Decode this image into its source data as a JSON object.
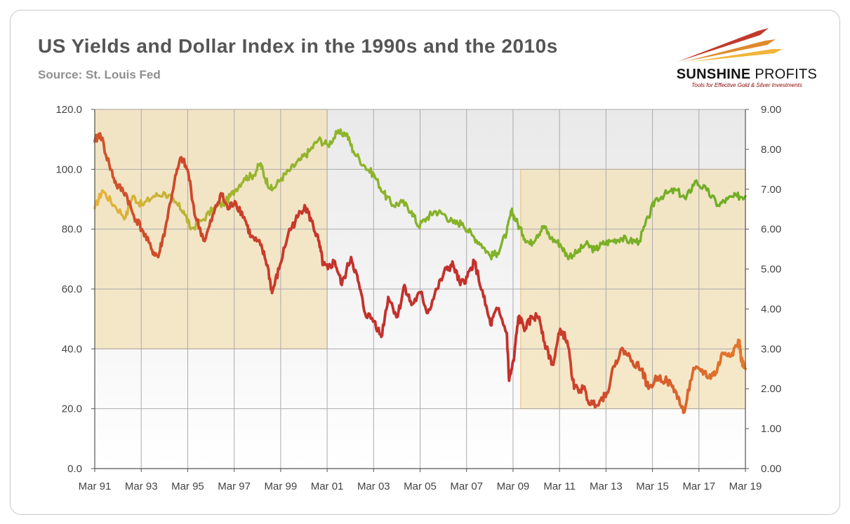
{
  "header": {
    "title": "US Yields and Dollar Index in the 1990s and the 2010s",
    "source": "Source: St. Louis Fed"
  },
  "logo": {
    "name_bold": "SUNSHINE",
    "name_regular": " PROFITS",
    "tagline": "Tools for Effective Gold & Silver Investments",
    "colors": {
      "red": "#c0392b",
      "orange": "#e0892b",
      "gold": "#f0b63a"
    }
  },
  "chart_data": {
    "type": "line",
    "title": "US Yields and Dollar Index in the 1990s and the 2010s",
    "subtitle": "Source: St. Louis Fed",
    "x_labels": [
      "Mar 91",
      "Mar 93",
      "Mar 95",
      "Mar 97",
      "Mar 99",
      "Mar 01",
      "Mar 03",
      "Mar 05",
      "Mar 07",
      "Mar 09",
      "Mar 11",
      "Mar 13",
      "Mar 15",
      "Mar 17",
      "Mar 19"
    ],
    "left_axis": {
      "range": [
        0,
        120
      ],
      "ticks": [
        "0.0",
        "20.0",
        "40.0",
        "60.0",
        "80.0",
        "100.0",
        "120.0"
      ]
    },
    "right_axis": {
      "range": [
        0,
        9
      ],
      "ticks": [
        "0.00",
        "1.00",
        "2.00",
        "3.00",
        "4.00",
        "5.00",
        "6.00",
        "7.00",
        "8.00",
        "9.00"
      ]
    },
    "x_range": [
      1991.17,
      2019.17
    ],
    "shaded_regions": [
      {
        "x": [
          1991.17,
          2001.17
        ],
        "y_left": [
          40,
          120
        ]
      },
      {
        "x": [
          2009.5,
          2019.17
        ],
        "y_left": [
          20,
          100
        ]
      }
    ],
    "series": [
      {
        "name": "Dollar Index",
        "axis": "left",
        "color_gradient": [
          "#e8b23a",
          "#6fae25"
        ],
        "points": [
          [
            1991.17,
            87
          ],
          [
            1991.5,
            93
          ],
          [
            1992.0,
            88
          ],
          [
            1992.5,
            84
          ],
          [
            1992.8,
            91
          ],
          [
            1993.2,
            88
          ],
          [
            1993.7,
            91
          ],
          [
            1994.2,
            92
          ],
          [
            1994.6,
            89
          ],
          [
            1995.0,
            86
          ],
          [
            1995.3,
            80
          ],
          [
            1995.8,
            83
          ],
          [
            1996.3,
            87
          ],
          [
            1996.8,
            89
          ],
          [
            1997.2,
            93
          ],
          [
            1997.6,
            97
          ],
          [
            1998.0,
            98
          ],
          [
            1998.3,
            102
          ],
          [
            1998.5,
            97
          ],
          [
            1998.8,
            93
          ],
          [
            1999.2,
            97
          ],
          [
            1999.6,
            100
          ],
          [
            2000.0,
            103
          ],
          [
            2000.4,
            106
          ],
          [
            2000.8,
            110
          ],
          [
            2001.2,
            108
          ],
          [
            2001.6,
            112
          ],
          [
            2002.0,
            112
          ],
          [
            2002.3,
            106
          ],
          [
            2002.8,
            101
          ],
          [
            2003.2,
            98
          ],
          [
            2003.6,
            92
          ],
          [
            2004.0,
            88
          ],
          [
            2004.4,
            89
          ],
          [
            2004.8,
            86
          ],
          [
            2005.1,
            81
          ],
          [
            2005.5,
            84
          ],
          [
            2005.8,
            86
          ],
          [
            2006.2,
            85
          ],
          [
            2006.6,
            82
          ],
          [
            2007.0,
            82
          ],
          [
            2007.4,
            78
          ],
          [
            2007.8,
            75
          ],
          [
            2008.2,
            71
          ],
          [
            2008.5,
            72
          ],
          [
            2008.9,
            79
          ],
          [
            2009.1,
            86
          ],
          [
            2009.3,
            83
          ],
          [
            2009.6,
            78
          ],
          [
            2009.9,
            75
          ],
          [
            2010.2,
            78
          ],
          [
            2010.5,
            81
          ],
          [
            2010.8,
            77
          ],
          [
            2011.2,
            75
          ],
          [
            2011.5,
            71
          ],
          [
            2011.9,
            72
          ],
          [
            2012.3,
            75
          ],
          [
            2012.7,
            73
          ],
          [
            2013.0,
            75
          ],
          [
            2013.4,
            76
          ],
          [
            2013.8,
            77
          ],
          [
            2014.2,
            76
          ],
          [
            2014.6,
            76
          ],
          [
            2015.0,
            84
          ],
          [
            2015.3,
            90
          ],
          [
            2015.8,
            92
          ],
          [
            2016.2,
            93
          ],
          [
            2016.6,
            90
          ],
          [
            2017.0,
            96
          ],
          [
            2017.5,
            93
          ],
          [
            2018.0,
            88
          ],
          [
            2018.4,
            90
          ],
          [
            2018.8,
            91
          ],
          [
            2019.17,
            91
          ]
        ]
      },
      {
        "name": "US Yields",
        "axis": "right",
        "color_gradient": [
          "#c4302b",
          "#e3782b"
        ],
        "points": [
          [
            1991.17,
            8.2
          ],
          [
            1991.4,
            8.4
          ],
          [
            1991.8,
            7.6
          ],
          [
            1992.1,
            7.1
          ],
          [
            1992.5,
            6.9
          ],
          [
            1992.8,
            6.4
          ],
          [
            1993.2,
            6.0
          ],
          [
            1993.6,
            5.5
          ],
          [
            1993.9,
            5.3
          ],
          [
            1994.2,
            6.0
          ],
          [
            1994.6,
            7.2
          ],
          [
            1994.9,
            7.8
          ],
          [
            1995.2,
            7.4
          ],
          [
            1995.5,
            6.3
          ],
          [
            1995.9,
            5.7
          ],
          [
            1996.3,
            6.4
          ],
          [
            1996.6,
            6.9
          ],
          [
            1996.9,
            6.5
          ],
          [
            1997.2,
            6.7
          ],
          [
            1997.6,
            6.3
          ],
          [
            1997.9,
            5.8
          ],
          [
            1998.3,
            5.6
          ],
          [
            1998.6,
            5.1
          ],
          [
            1998.8,
            4.4
          ],
          [
            1999.1,
            5.0
          ],
          [
            1999.5,
            5.9
          ],
          [
            1999.9,
            6.3
          ],
          [
            2000.2,
            6.6
          ],
          [
            2000.5,
            6.2
          ],
          [
            2000.8,
            5.7
          ],
          [
            2001.0,
            5.1
          ],
          [
            2001.2,
            5.0
          ],
          [
            2001.5,
            5.2
          ],
          [
            2001.8,
            4.6
          ],
          [
            2002.2,
            5.3
          ],
          [
            2002.5,
            4.7
          ],
          [
            2002.8,
            3.9
          ],
          [
            2003.2,
            3.7
          ],
          [
            2003.5,
            3.3
          ],
          [
            2003.8,
            4.3
          ],
          [
            2004.2,
            3.8
          ],
          [
            2004.5,
            4.6
          ],
          [
            2004.8,
            4.1
          ],
          [
            2005.2,
            4.4
          ],
          [
            2005.5,
            3.9
          ],
          [
            2005.9,
            4.5
          ],
          [
            2006.3,
            5.0
          ],
          [
            2006.6,
            5.1
          ],
          [
            2006.9,
            4.6
          ],
          [
            2007.2,
            4.8
          ],
          [
            2007.5,
            5.2
          ],
          [
            2007.9,
            4.3
          ],
          [
            2008.2,
            3.6
          ],
          [
            2008.5,
            4.0
          ],
          [
            2008.9,
            3.4
          ],
          [
            2009.0,
            2.2
          ],
          [
            2009.2,
            2.7
          ],
          [
            2009.4,
            3.8
          ],
          [
            2009.7,
            3.5
          ],
          [
            2010.0,
            3.8
          ],
          [
            2010.3,
            3.8
          ],
          [
            2010.6,
            3.0
          ],
          [
            2010.9,
            2.6
          ],
          [
            2011.2,
            3.5
          ],
          [
            2011.5,
            3.2
          ],
          [
            2011.8,
            2.0
          ],
          [
            2012.2,
            2.0
          ],
          [
            2012.5,
            1.6
          ],
          [
            2012.9,
            1.7
          ],
          [
            2013.2,
            1.9
          ],
          [
            2013.6,
            2.7
          ],
          [
            2013.9,
            3.0
          ],
          [
            2014.3,
            2.7
          ],
          [
            2014.7,
            2.5
          ],
          [
            2015.0,
            2.0
          ],
          [
            2015.4,
            2.3
          ],
          [
            2015.8,
            2.2
          ],
          [
            2016.2,
            1.9
          ],
          [
            2016.5,
            1.4
          ],
          [
            2016.9,
            2.4
          ],
          [
            2017.2,
            2.5
          ],
          [
            2017.6,
            2.3
          ],
          [
            2017.9,
            2.4
          ],
          [
            2018.2,
            2.9
          ],
          [
            2018.6,
            2.9
          ],
          [
            2018.9,
            3.2
          ],
          [
            2019.0,
            2.7
          ],
          [
            2019.17,
            2.5
          ]
        ]
      }
    ]
  }
}
